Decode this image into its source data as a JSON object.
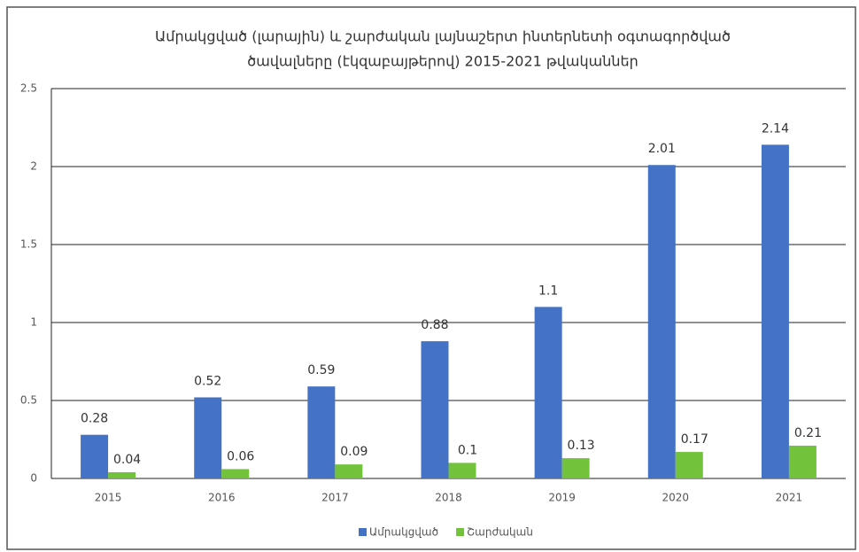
{
  "chart_data": {
    "type": "bar",
    "title": [
      "Ամրակցված (լարային) և շարժական լայնաշերտ ինտերնետի օգտագործված",
      "ծավալները (էկզաբայթերով) 2015-2021 թվականներ"
    ],
    "categories": [
      "2015",
      "2016",
      "2017",
      "2018",
      "2019",
      "2020",
      "2021"
    ],
    "series": [
      {
        "name": "Ամրակցված",
        "color": "#4472c4",
        "values": [
          0.28,
          0.52,
          0.59,
          0.88,
          1.1,
          2.01,
          2.14
        ]
      },
      {
        "name": "Շարժական",
        "color": "#72c23c",
        "values": [
          0.04,
          0.06,
          0.09,
          0.1,
          0.13,
          0.17,
          0.21
        ]
      }
    ],
    "ylim": [
      0,
      2.5
    ],
    "yticks": [
      0,
      0.5,
      1,
      1.5,
      2,
      2.5
    ],
    "grid": true,
    "legend": "bottom"
  }
}
